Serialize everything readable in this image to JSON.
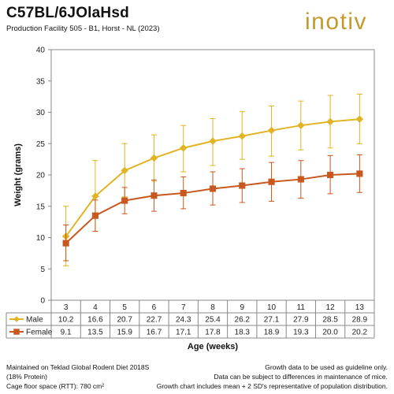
{
  "header": {
    "title": "C57BL/6JOlaHsd",
    "subtitle": "Production Facility 505 - B1, Horst - NL (2023)"
  },
  "logo": {
    "text": "inotiv",
    "color": "#c49a2c"
  },
  "footer": {
    "left": [
      "Maintained on Teklad Global Rodent Diet 2018S",
      "(18% Protein)",
      "Cage floor space (RTT): 780 cm²"
    ],
    "right": [
      "Growth data to be used as guideline only.",
      "Data can be subject to differences in maintenance of mice.",
      "Growth chart includes mean + 2 SD's representative of population distribution."
    ]
  },
  "chart_data": {
    "type": "line",
    "xlabel": "Age (weeks)",
    "ylabel": "Weight (grams)",
    "ylim": [
      0,
      40
    ],
    "yticks": [
      0,
      5,
      10,
      15,
      20,
      25,
      30,
      35,
      40
    ],
    "categories": [
      "3",
      "4",
      "5",
      "6",
      "7",
      "8",
      "9",
      "10",
      "11",
      "12",
      "13"
    ],
    "grid": false,
    "legend": "table-below",
    "series": [
      {
        "name": "Male",
        "color": "#e0b424",
        "marker": "diamond",
        "values": [
          10.2,
          16.6,
          20.7,
          22.7,
          24.3,
          25.4,
          26.2,
          27.1,
          27.9,
          28.5,
          28.9
        ],
        "error_low": [
          5.5,
          11.0,
          16.5,
          19.0,
          20.5,
          21.5,
          22.5,
          23.0,
          24.0,
          24.3,
          25.0
        ],
        "error_high": [
          15.0,
          22.3,
          25.0,
          26.4,
          27.9,
          29.0,
          30.1,
          31.0,
          31.8,
          32.7,
          32.9
        ]
      },
      {
        "name": "Female",
        "color": "#c8581e",
        "marker": "square",
        "values": [
          9.1,
          13.5,
          15.9,
          16.7,
          17.1,
          17.8,
          18.3,
          18.9,
          19.3,
          20.0,
          20.2
        ],
        "error_low": [
          6.3,
          11.0,
          13.8,
          14.2,
          14.6,
          15.2,
          15.6,
          15.8,
          16.3,
          17.0,
          17.2
        ],
        "error_high": [
          12.0,
          16.0,
          18.0,
          19.2,
          19.7,
          20.5,
          21.0,
          22.0,
          22.3,
          23.1,
          23.2
        ]
      }
    ]
  }
}
